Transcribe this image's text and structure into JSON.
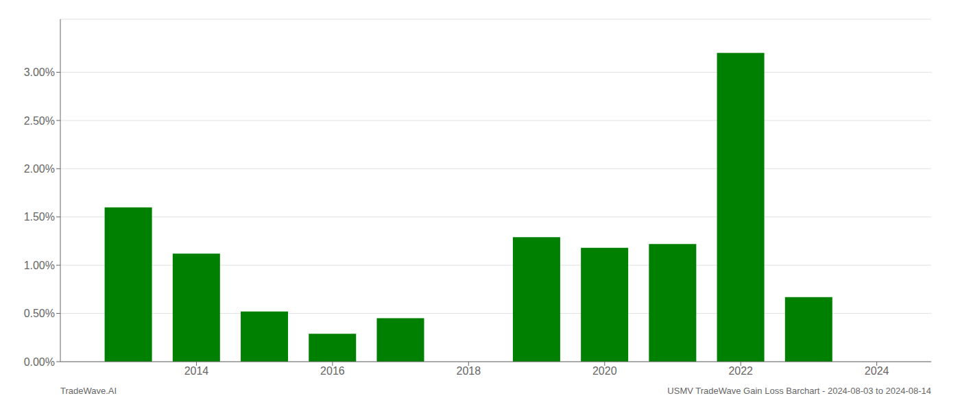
{
  "chart_data": {
    "type": "bar",
    "x": [
      2013,
      2014,
      2015,
      2016,
      2017,
      2019,
      2020,
      2021,
      2022,
      2023
    ],
    "values": [
      0.016,
      0.0112,
      0.0052,
      0.0029,
      0.0045,
      0.0129,
      0.0118,
      0.0122,
      0.032,
      0.0067
    ],
    "color": "#008000",
    "xlim": [
      2012.0,
      2024.8
    ],
    "ylim": [
      0.0,
      0.0355
    ],
    "xticks": [
      2014,
      2016,
      2018,
      2020,
      2022,
      2024
    ],
    "yticks": [
      {
        "value": 0.0,
        "label": "0.00%"
      },
      {
        "value": 0.005,
        "label": "0.50%"
      },
      {
        "value": 0.01,
        "label": "1.00%"
      },
      {
        "value": 0.015,
        "label": "1.50%"
      },
      {
        "value": 0.02,
        "label": "2.00%"
      },
      {
        "value": 0.025,
        "label": "2.50%"
      },
      {
        "value": 0.03,
        "label": "3.00%"
      }
    ],
    "grid": true,
    "annotations": [
      "TradeWave.AI",
      "USMV TradeWave Gain Loss Barchart - 2024-08-03 to 2024-08-14"
    ]
  }
}
